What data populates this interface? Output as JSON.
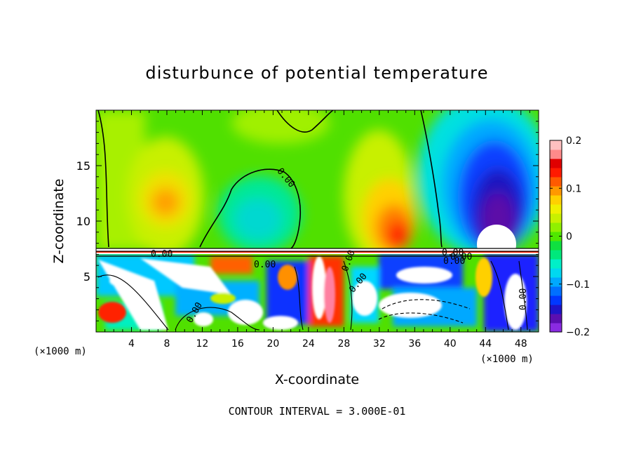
{
  "chart_data": {
    "type": "heatmap",
    "title": "disturbunce of potential temperature",
    "xlabel": "X-coordinate",
    "ylabel": "Z-coordinate",
    "x_unit": "(×1000 m)",
    "z_unit": "(×1000 m)",
    "footer": "CONTOUR INTERVAL = 3.000E-01",
    "xlim": [
      0,
      50
    ],
    "ylim": [
      0,
      20
    ],
    "x_ticks": [
      4,
      8,
      12,
      16,
      20,
      24,
      28,
      32,
      36,
      40,
      44,
      48
    ],
    "y_ticks": [
      5,
      10,
      15
    ],
    "colorbar": {
      "range": [
        -0.2,
        0.2
      ],
      "tick_labels": [
        "0.2",
        "0.1",
        "0",
        "−0.1",
        "−0.2"
      ],
      "tick_values": [
        0.2,
        0.1,
        0,
        -0.1,
        -0.2
      ],
      "colors": [
        "#8a2be2",
        "#5b0fb0",
        "#1e14c8",
        "#0038ff",
        "#0070ff",
        "#00a8ff",
        "#00d8f0",
        "#00f0c8",
        "#00e87c",
        "#10e040",
        "#50e800",
        "#90f000",
        "#c8f000",
        "#f0f000",
        "#ffd000",
        "#ff9800",
        "#ff5a00",
        "#ff1a00",
        "#e00000",
        "#ff8a8a",
        "#ffc0c0"
      ]
    },
    "contour_labels": [
      "0.00",
      "0.00",
      "0.00",
      "0.00",
      "0.00",
      "0.00",
      "0.00",
      "0.00",
      "0.00",
      "0.00"
    ],
    "features": [
      {
        "x": 8,
        "z": 12,
        "value": 0.09
      },
      {
        "x": 18,
        "z": 11,
        "value": -0.04
      },
      {
        "x": 33,
        "z": 9,
        "value": 0.14
      },
      {
        "x": 45,
        "z": 12,
        "value": -0.17
      },
      {
        "x": 45,
        "z": 9,
        "value": -0.2
      },
      {
        "x": 42,
        "z": 16,
        "value": -0.1
      },
      {
        "x": 28,
        "z": 13,
        "value": 0.07
      }
    ]
  }
}
